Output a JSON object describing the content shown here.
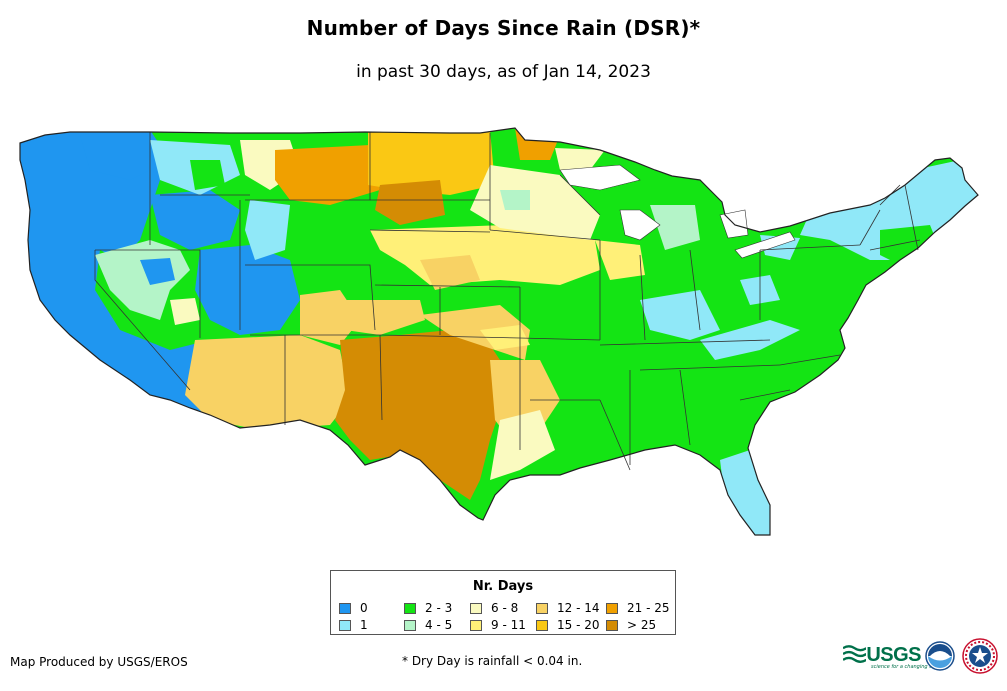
{
  "title": "Number of Days Since Rain (DSR)*",
  "subtitle": "in past 30 days, as of Jan 14, 2023",
  "legend": {
    "title": "Nr. Days",
    "items": [
      {
        "label": "0",
        "color": "#1f96f0"
      },
      {
        "label": "1",
        "color": "#90e8f8"
      },
      {
        "label": "2 - 3",
        "color": "#14e414"
      },
      {
        "label": "4 - 5",
        "color": "#b4f4c8"
      },
      {
        "label": "6 - 8",
        "color": "#fafac0"
      },
      {
        "label": "9 - 11",
        "color": "#fff078"
      },
      {
        "label": "12 - 14",
        "color": "#f8d264"
      },
      {
        "label": "15 - 20",
        "color": "#fac814"
      },
      {
        "label": "21 - 25",
        "color": "#f0a000"
      },
      {
        "label": "> 25",
        "color": "#d48c04"
      }
    ]
  },
  "credit": "Map Produced by USGS/EROS",
  "footnote": "* Dry Day is rainfall < 0.04 in.",
  "logos": {
    "usgs": "USGS",
    "usgs_tagline": "science for a changing world"
  }
}
